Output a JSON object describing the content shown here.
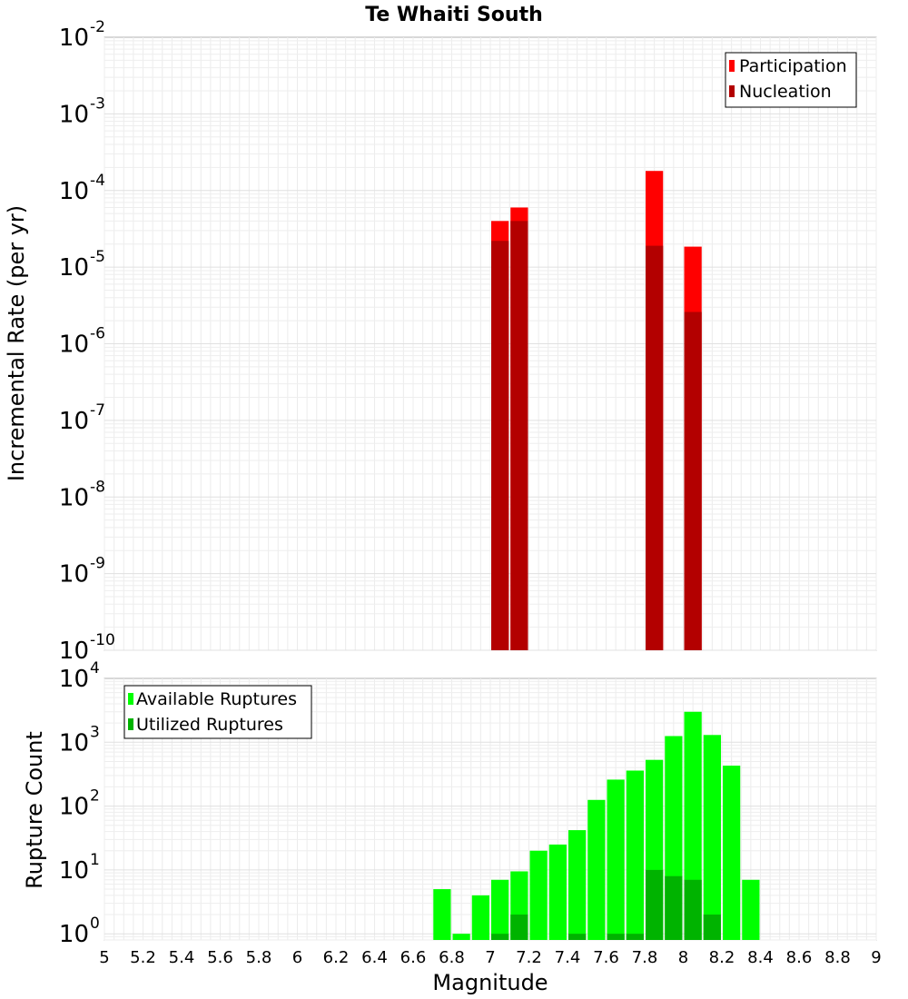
{
  "chart_data": [
    {
      "type": "bar",
      "title": "Te Whaiti South",
      "ylabel": "Incremental Rate (per yr)",
      "y_scale": "log",
      "ylim": [
        1e-10,
        0.01
      ],
      "xlim": [
        5,
        9
      ],
      "legend_position": "top-right",
      "grid": true,
      "y_ticks": [
        {
          "base": "10",
          "exp": "-10"
        },
        {
          "base": "10",
          "exp": "-9"
        },
        {
          "base": "10",
          "exp": "-8"
        },
        {
          "base": "10",
          "exp": "-7"
        },
        {
          "base": "10",
          "exp": "-6"
        },
        {
          "base": "10",
          "exp": "-5"
        },
        {
          "base": "10",
          "exp": "-4"
        },
        {
          "base": "10",
          "exp": "-3"
        },
        {
          "base": "10",
          "exp": "-2"
        }
      ],
      "series": [
        {
          "name": "Participation",
          "color": "#ff0000",
          "x": [
            7.05,
            7.15,
            7.85,
            8.05
          ],
          "values": [
            4e-05,
            6e-05,
            0.00018,
            1.85e-05
          ]
        },
        {
          "name": "Nucleation",
          "color": "#b30000",
          "x": [
            7.05,
            7.15,
            7.85,
            8.05
          ],
          "values": [
            2.2e-05,
            4e-05,
            1.9e-05,
            2.6e-06
          ]
        }
      ]
    },
    {
      "type": "bar",
      "xlabel": "Magnitude",
      "ylabel": "Rupture Count",
      "y_scale": "log",
      "ylim": [
        0.8,
        10000
      ],
      "xlim": [
        5,
        9
      ],
      "legend_position": "top-left",
      "grid": true,
      "x_ticks": [
        "5",
        "5.2",
        "5.4",
        "5.6",
        "5.8",
        "6",
        "6.2",
        "6.4",
        "6.6",
        "6.8",
        "7",
        "7.2",
        "7.4",
        "7.6",
        "7.8",
        "8",
        "8.2",
        "8.4",
        "8.6",
        "8.8",
        "9"
      ],
      "y_ticks": [
        {
          "base": "10",
          "exp": "0"
        },
        {
          "base": "10",
          "exp": "1"
        },
        {
          "base": "10",
          "exp": "2"
        },
        {
          "base": "10",
          "exp": "3"
        },
        {
          "base": "10",
          "exp": "4"
        }
      ],
      "series": [
        {
          "name": "Available Ruptures",
          "color": "#00ff00",
          "x": [
            6.75,
            6.85,
            6.95,
            7.05,
            7.15,
            7.25,
            7.35,
            7.45,
            7.55,
            7.65,
            7.75,
            7.85,
            7.95,
            8.05,
            8.15,
            8.25,
            8.35
          ],
          "values": [
            5,
            1,
            4,
            7,
            9.5,
            20,
            25,
            42,
            125,
            260,
            360,
            530,
            1250,
            3000,
            1300,
            430,
            7
          ]
        },
        {
          "name": "Utilized Ruptures",
          "color": "#00b300",
          "x": [
            7.05,
            7.15,
            7.45,
            7.65,
            7.75,
            7.85,
            7.95,
            8.05,
            8.15
          ],
          "values": [
            1,
            2,
            1,
            1,
            1,
            10,
            8,
            7,
            2
          ]
        }
      ]
    }
  ]
}
